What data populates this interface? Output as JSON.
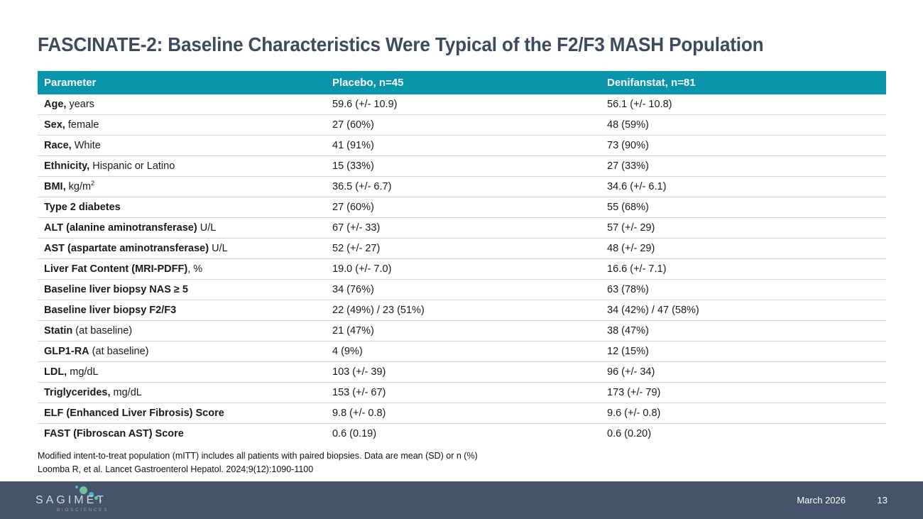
{
  "slide": {
    "title": "FASCINATE-2: Baseline Characteristics Were Typical of the F2/F3 MASH Population"
  },
  "table": {
    "headers": [
      "Parameter",
      "Placebo, n=45",
      "Denifanstat, n=81"
    ],
    "rows": [
      {
        "param_bold": "Age,",
        "param_rest": " years",
        "placebo": "59.6 (+/- 10.9)",
        "denifanstat": "56.1 (+/- 10.8)"
      },
      {
        "param_bold": "Sex,",
        "param_rest": " female",
        "placebo": "27 (60%)",
        "denifanstat": "48 (59%)"
      },
      {
        "param_bold": "Race,",
        "param_rest": " White",
        "placebo": "41 (91%)",
        "denifanstat": "73 (90%)"
      },
      {
        "param_bold": "Ethnicity,",
        "param_rest": " Hispanic or Latino",
        "placebo": "15 (33%)",
        "denifanstat": "27 (33%)"
      },
      {
        "param_bold": "BMI,",
        "param_rest": " kg/m",
        "param_sup": "2",
        "placebo": "36.5 (+/- 6.7)",
        "denifanstat": "34.6 (+/- 6.1)"
      },
      {
        "param_bold": "Type 2 diabetes",
        "param_rest": "",
        "placebo": "27 (60%)",
        "denifanstat": "55 (68%)"
      },
      {
        "param_bold": "ALT (alanine aminotransferase)",
        "param_rest": " U/L",
        "placebo": "67 (+/- 33)",
        "denifanstat": "57 (+/- 29)"
      },
      {
        "param_bold": "AST (aspartate aminotransferase)",
        "param_rest": " U/L",
        "placebo": "52 (+/- 27)",
        "denifanstat": "48 (+/- 29)"
      },
      {
        "param_bold": "Liver Fat Content (MRI-PDFF)",
        "param_rest": ", %",
        "placebo": "19.0 (+/- 7.0)",
        "denifanstat": "16.6 (+/- 7.1)"
      },
      {
        "param_bold": "Baseline liver biopsy NAS ≥ 5",
        "param_rest": "",
        "placebo": "34 (76%)",
        "denifanstat": "63 (78%)"
      },
      {
        "param_bold": "Baseline liver biopsy F2/F3",
        "param_rest": "",
        "placebo": "22 (49%) / 23 (51%)",
        "denifanstat": "34 (42%) / 47 (58%)"
      },
      {
        "param_bold": "Statin",
        "param_rest": " (at baseline)",
        "placebo": "21 (47%)",
        "denifanstat": "38 (47%)"
      },
      {
        "param_bold": "GLP1-RA",
        "param_rest": " (at baseline)",
        "placebo": "4 (9%)",
        "denifanstat": "12 (15%)"
      },
      {
        "param_bold": "LDL,",
        "param_rest": " mg/dL",
        "placebo": "103 (+/- 39)",
        "denifanstat": "96 (+/- 34)"
      },
      {
        "param_bold": "Triglycerides,",
        "param_rest": " mg/dL",
        "placebo": "153 (+/- 67)",
        "denifanstat": "173 (+/- 79)"
      },
      {
        "param_bold": "ELF (Enhanced Liver Fibrosis) Score",
        "param_rest": "",
        "placebo": "9.8 (+/- 0.8)",
        "denifanstat": "9.6 (+/- 0.8)"
      },
      {
        "param_bold": "FAST (Fibroscan AST) Score",
        "param_rest": "",
        "placebo": "0.6 (0.19)",
        "denifanstat": "0.6 (0.20)"
      }
    ]
  },
  "footnotes": [
    "Modified intent-to-treat population (mITT) includes all patients with paired biopsies. Data are mean (SD) or n (%)",
    "Loomba R, et al. Lancet Gastroenterol Hepatol. 2024;9(12):1090-1100"
  ],
  "footer": {
    "logo_text": "SAGIMET",
    "logo_subtext": "BIOSCIENCES",
    "date": "March 2026",
    "page_number": "13"
  },
  "colors": {
    "header_teal": "#0996AC",
    "title_slate": "#3E4A5E",
    "footer_slate": "#44546A",
    "row_divider": "#D6D6D6",
    "logo_dot_green": "#71C29E",
    "logo_dot_teal": "#4FB5C8"
  }
}
